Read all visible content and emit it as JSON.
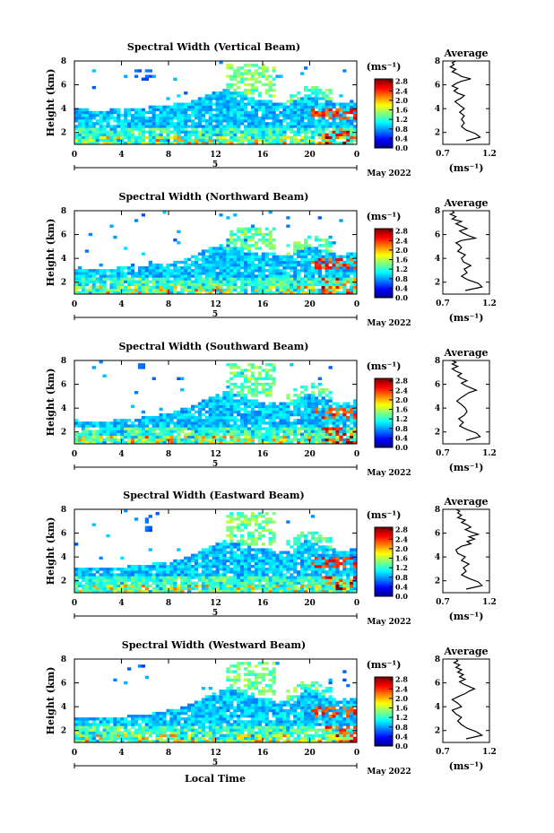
{
  "figure": {
    "x_axis_label": "Local Time",
    "month_label": "May 2022",
    "date_label": "5"
  },
  "chart_data": [
    {
      "type": "heatmap",
      "title": "Spectral Width (Vertical Beam)",
      "ylabel": "Height (km)",
      "xlabel": "",
      "x_ticks": [
        "0",
        "4",
        "8",
        "12",
        "16",
        "20",
        "0"
      ],
      "y_ticks": [
        "2",
        "4",
        "6",
        "8"
      ],
      "xlim": [
        0,
        24
      ],
      "ylim": [
        1,
        8
      ],
      "colorbar": {
        "unit": "(ms⁻¹)",
        "ticks": [
          "0.0",
          "0.4",
          "0.8",
          "1.2",
          "1.6",
          "2.0",
          "2.4",
          "2.8"
        ],
        "range": [
          0.0,
          2.9
        ]
      },
      "features": {
        "echo_top_km": [
          4.1,
          3.9,
          3.9,
          4.0,
          4.1,
          4.2,
          4.4,
          4.6,
          5.2,
          5.6,
          5.3,
          4.8,
          4.6,
          4.5,
          5.2,
          4.9,
          4.4,
          4.8
        ],
        "high_echo_x": [
          5,
          6.5
        ],
        "high_echo_y": [
          6.3,
          7.4
        ],
        "plume_x": [
          13,
          17
        ],
        "plume_y": [
          5.0,
          7.8
        ]
      }
    },
    {
      "type": "heatmap",
      "title": "Spectral Width (Northward Beam)",
      "ylabel": "Height (km)",
      "xlabel": "",
      "x_ticks": [
        "0",
        "4",
        "8",
        "12",
        "16",
        "20",
        "0"
      ],
      "y_ticks": [
        "2",
        "4",
        "6",
        "8"
      ],
      "xlim": [
        0,
        24
      ],
      "ylim": [
        1,
        8
      ],
      "colorbar": {
        "unit": "(ms⁻¹)",
        "ticks": [
          "0.0",
          "0.4",
          "0.8",
          "1.2",
          "1.6",
          "2.0",
          "2.4",
          "2.8"
        ],
        "range": [
          0.0,
          2.9
        ]
      },
      "features": {
        "echo_top_km": [
          3.3,
          3.1,
          3.1,
          3.3,
          3.4,
          3.5,
          3.7,
          4.1,
          4.8,
          5.2,
          4.9,
          4.5,
          4.4,
          4.3,
          5.0,
          4.8,
          4.2,
          4.6
        ],
        "high_echo_x": [
          5,
          6
        ],
        "high_echo_y": [
          7.0,
          7.4
        ],
        "plume_x": [
          13,
          17
        ],
        "plume_y": [
          4.8,
          6.6
        ]
      }
    },
    {
      "type": "heatmap",
      "title": "Spectral Width (Southward Beam)",
      "ylabel": "Height (km)",
      "xlabel": "",
      "x_ticks": [
        "0",
        "4",
        "8",
        "12",
        "16",
        "20",
        "0"
      ],
      "y_ticks": [
        "2",
        "4",
        "6",
        "8"
      ],
      "xlim": [
        0,
        24
      ],
      "ylim": [
        1,
        8
      ],
      "colorbar": {
        "unit": "(ms⁻¹)",
        "ticks": [
          "0.0",
          "0.4",
          "0.8",
          "1.2",
          "1.6",
          "2.0",
          "2.4",
          "2.8"
        ],
        "range": [
          0.0,
          2.9
        ]
      },
      "features": {
        "echo_top_km": [
          3.0,
          2.9,
          2.9,
          3.1,
          3.2,
          3.4,
          3.7,
          4.1,
          4.8,
          5.4,
          5.1,
          4.6,
          4.5,
          4.4,
          5.3,
          4.9,
          4.3,
          4.7
        ],
        "high_echo_x": [
          5.5,
          6
        ],
        "high_echo_y": [
          7.3,
          7.7
        ],
        "plume_x": [
          13,
          17
        ],
        "plume_y": [
          5.0,
          7.8
        ]
      }
    },
    {
      "type": "heatmap",
      "title": "Spectral Width (Eastward Beam)",
      "ylabel": "Height (km)",
      "xlabel": "",
      "x_ticks": [
        "0",
        "4",
        "8",
        "12",
        "16",
        "20",
        "0"
      ],
      "y_ticks": [
        "2",
        "4",
        "6",
        "8"
      ],
      "xlim": [
        0,
        24
      ],
      "ylim": [
        1,
        8
      ],
      "colorbar": {
        "unit": "(ms⁻¹)",
        "ticks": [
          "0.0",
          "0.4",
          "0.8",
          "1.2",
          "1.6",
          "2.0",
          "2.4",
          "2.8"
        ],
        "range": [
          0.0,
          2.9
        ]
      },
      "features": {
        "echo_top_km": [
          3.1,
          3.0,
          3.1,
          3.2,
          3.3,
          3.5,
          3.7,
          4.1,
          4.8,
          5.4,
          5.2,
          4.7,
          4.6,
          4.5,
          5.4,
          5.0,
          4.4,
          4.8
        ],
        "high_echo_x": [
          6,
          6.5
        ],
        "high_echo_y": [
          6.0,
          7.6
        ],
        "plume_x": [
          13,
          17
        ],
        "plume_y": [
          5.0,
          7.8
        ]
      }
    },
    {
      "type": "heatmap",
      "title": "Spectral Width (Westward Beam)",
      "ylabel": "Height (km)",
      "xlabel": "Local Time",
      "x_ticks": [
        "0",
        "4",
        "8",
        "12",
        "16",
        "20",
        "0"
      ],
      "y_ticks": [
        "2",
        "4",
        "6",
        "8"
      ],
      "xlim": [
        0,
        24
      ],
      "ylim": [
        1,
        8
      ],
      "colorbar": {
        "unit": "(ms⁻¹)",
        "ticks": [
          "0.0",
          "0.4",
          "0.8",
          "1.2",
          "1.6",
          "2.0",
          "2.4",
          "2.8"
        ],
        "range": [
          0.0,
          2.9
        ]
      },
      "features": {
        "echo_top_km": [
          3.2,
          3.0,
          3.0,
          3.2,
          3.3,
          3.5,
          3.8,
          4.2,
          4.9,
          5.5,
          5.2,
          4.8,
          4.6,
          4.5,
          5.4,
          5.0,
          4.4,
          4.8
        ],
        "high_echo_x": [
          5.5,
          6
        ],
        "high_echo_y": [
          7.3,
          7.6
        ],
        "plume_x": [
          13,
          17
        ],
        "plume_y": [
          5.0,
          7.8
        ]
      }
    },
    {
      "type": "line",
      "title": "Average",
      "xlabel": "(ms⁻¹)",
      "ylabel": "",
      "x_ticks": [
        "0.7",
        "1.2"
      ],
      "y_ticks": [
        "2",
        "4",
        "6",
        "8"
      ],
      "xlim": [
        0.7,
        1.2
      ],
      "ylim": [
        1,
        8
      ],
      "series": [
        {
          "x": [
            0.95,
            1.1,
            1.05,
            0.95,
            0.9,
            0.93,
            0.9,
            0.93,
            0.88,
            0.93,
            0.88,
            0.83,
            0.9,
            0.93,
            0.86,
            0.82,
            0.86,
            0.8,
            0.84,
            0.9,
            1.0,
            0.9,
            0.86,
            0.8,
            0.84,
            0.78,
            0.82,
            0.8,
            0.84
          ],
          "y": [
            1.3,
            1.6,
            1.9,
            2.2,
            2.5,
            2.8,
            3.1,
            3.4,
            3.7,
            4.0,
            4.3,
            4.6,
            4.9,
            5.1,
            5.3,
            5.5,
            5.7,
            5.9,
            6.1,
            6.3,
            6.5,
            6.7,
            6.9,
            7.1,
            7.3,
            7.5,
            7.7,
            7.85,
            8.0
          ]
        }
      ]
    },
    {
      "type": "line",
      "title": "Average",
      "xlabel": "(ms⁻¹)",
      "ylabel": "",
      "x_ticks": [
        "0.7",
        "1.2"
      ],
      "y_ticks": [
        "2",
        "4",
        "6",
        "8"
      ],
      "xlim": [
        0.7,
        1.2
      ],
      "ylim": [
        1,
        8
      ],
      "series": [
        {
          "x": [
            0.94,
            1.12,
            1.08,
            0.97,
            0.9,
            0.96,
            0.93,
            1.0,
            0.92,
            0.9,
            0.94,
            0.86,
            0.9,
            0.88,
            0.84,
            0.9,
            1.05,
            0.98,
            0.92,
            0.88,
            0.96,
            0.9,
            0.84,
            0.9,
            0.8,
            0.84,
            0.78,
            0.82,
            0.8
          ],
          "y": [
            1.3,
            1.6,
            1.9,
            2.2,
            2.5,
            2.8,
            3.1,
            3.4,
            3.7,
            4.0,
            4.3,
            4.6,
            4.9,
            5.1,
            5.3,
            5.5,
            5.7,
            5.9,
            6.1,
            6.3,
            6.5,
            6.7,
            6.9,
            7.1,
            7.3,
            7.5,
            7.7,
            7.85,
            8.0
          ]
        }
      ]
    },
    {
      "type": "line",
      "title": "Average",
      "xlabel": "(ms⁻¹)",
      "ylabel": "",
      "x_ticks": [
        "0.7",
        "1.2"
      ],
      "y_ticks": [
        "2",
        "4",
        "6",
        "8"
      ],
      "xlim": [
        0.7,
        1.2
      ],
      "ylim": [
        1,
        8
      ],
      "series": [
        {
          "x": [
            0.95,
            1.1,
            1.06,
            0.96,
            0.88,
            0.92,
            0.87,
            0.93,
            0.96,
            0.94,
            0.9,
            0.85,
            0.9,
            0.94,
            0.98,
            1.06,
            1.0,
            0.94,
            0.9,
            0.96,
            0.9,
            0.86,
            0.9,
            0.84,
            0.8,
            0.86,
            0.8,
            0.84,
            0.8
          ],
          "y": [
            1.3,
            1.6,
            1.9,
            2.2,
            2.5,
            2.8,
            3.1,
            3.4,
            3.7,
            4.0,
            4.3,
            4.6,
            4.9,
            5.1,
            5.3,
            5.5,
            5.7,
            5.9,
            6.1,
            6.3,
            6.5,
            6.7,
            6.9,
            7.1,
            7.3,
            7.5,
            7.7,
            7.85,
            8.0
          ]
        }
      ]
    },
    {
      "type": "line",
      "title": "Average",
      "xlabel": "(ms⁻¹)",
      "ylabel": "",
      "x_ticks": [
        "0.7",
        "1.2"
      ],
      "y_ticks": [
        "2",
        "4",
        "6",
        "8"
      ],
      "xlim": [
        0.7,
        1.2
      ],
      "ylim": [
        1,
        8
      ],
      "series": [
        {
          "x": [
            0.95,
            1.12,
            1.08,
            0.98,
            0.9,
            0.95,
            0.92,
            0.98,
            0.9,
            0.94,
            0.86,
            0.84,
            0.9,
            1.0,
            0.96,
            1.04,
            0.98,
            1.08,
            1.0,
            0.94,
            1.0,
            0.96,
            0.9,
            0.94,
            0.86,
            0.9,
            0.86,
            0.88,
            0.84
          ],
          "y": [
            1.3,
            1.6,
            1.9,
            2.2,
            2.5,
            2.8,
            3.1,
            3.4,
            3.7,
            4.0,
            4.3,
            4.6,
            4.9,
            5.1,
            5.3,
            5.5,
            5.7,
            5.9,
            6.1,
            6.3,
            6.5,
            6.7,
            6.9,
            7.1,
            7.3,
            7.5,
            7.7,
            7.85,
            8.0
          ]
        }
      ]
    },
    {
      "type": "line",
      "title": "Average",
      "xlabel": "(ms⁻¹)",
      "ylabel": "",
      "x_ticks": [
        "0.7",
        "1.2"
      ],
      "y_ticks": [
        "2",
        "4",
        "6",
        "8"
      ],
      "xlim": [
        0.7,
        1.2
      ],
      "ylim": [
        1,
        8
      ],
      "series": [
        {
          "x": [
            0.95,
            1.12,
            1.06,
            0.96,
            0.9,
            0.86,
            0.9,
            0.84,
            0.8,
            0.9,
            0.86,
            0.8,
            0.88,
            0.94,
            0.98,
            1.04,
            0.98,
            0.92,
            0.88,
            0.94,
            0.88,
            0.92,
            0.86,
            0.9,
            0.84,
            0.88,
            0.82,
            0.86,
            0.84
          ],
          "y": [
            1.3,
            1.6,
            1.9,
            2.2,
            2.5,
            2.8,
            3.1,
            3.4,
            3.7,
            4.0,
            4.3,
            4.6,
            4.9,
            5.1,
            5.3,
            5.5,
            5.7,
            5.9,
            6.1,
            6.3,
            6.5,
            6.7,
            6.9,
            7.1,
            7.3,
            7.5,
            7.7,
            7.85,
            8.0
          ]
        }
      ]
    }
  ]
}
